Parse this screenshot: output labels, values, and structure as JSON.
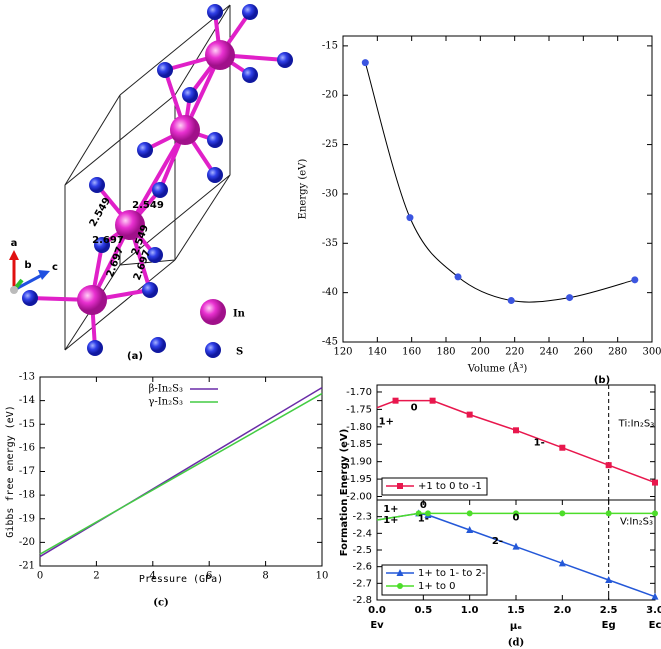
{
  "structure": {
    "label": "(a)",
    "bond_lengths": [
      "2.549",
      "2.549",
      "2.549",
      "2.697",
      "2.697",
      "2.697"
    ],
    "axes": [
      "a",
      "b",
      "c"
    ],
    "legend": [
      "In",
      "S"
    ]
  },
  "chart_data": [
    {
      "type": "scatter",
      "panel": "(b)",
      "fit": true,
      "xlabel": "Volume (Å³)",
      "ylabel": "Energy (eV)",
      "x": [
        133,
        159,
        187,
        218,
        252,
        290
      ],
      "values": [
        -16.7,
        -32.4,
        -38.4,
        -40.8,
        -40.5,
        -38.7
      ],
      "color": "#3b55e0",
      "xlim": [
        120,
        300
      ],
      "xticks": [
        120,
        140,
        160,
        180,
        200,
        220,
        240,
        260,
        280,
        300
      ],
      "ylim": [
        -45,
        -14
      ],
      "yticks": [
        -45,
        -40,
        -35,
        -30,
        -25,
        -20,
        -15
      ]
    },
    {
      "type": "line",
      "panel": "(c)",
      "xlabel": "Pressure (GPa)",
      "ylabel": "Gibbs free energy (eV)",
      "x": [
        0,
        2,
        4,
        6,
        8,
        10
      ],
      "series": [
        {
          "name": "β-In₂S₃",
          "color": "#6a2ca8",
          "values": [
            -20.6,
            -19.17,
            -17.74,
            -16.31,
            -14.88,
            -13.45
          ]
        },
        {
          "name": "γ-In₂S₃",
          "color": "#44cc44",
          "values": [
            -20.5,
            -19.14,
            -17.78,
            -16.42,
            -15.06,
            -13.7
          ]
        }
      ],
      "xlim": [
        0,
        10
      ],
      "xticks": [
        0,
        2,
        4,
        6,
        8,
        10
      ],
      "ylim": [
        -21,
        -13
      ],
      "yticks": [
        -21,
        -20,
        -19,
        -18,
        -17,
        -16,
        -15,
        -14,
        -13
      ],
      "legend": "top-left"
    },
    {
      "type": "line",
      "x": [
        0,
        0.2,
        0.6,
        1,
        1.5,
        2,
        2.5,
        3
      ],
      "series": [
        {
          "name": "+1 to 0 to -1",
          "color": "#e8174d",
          "marker": "square",
          "values": [
            -1.745,
            -1.725,
            -1.725,
            -1.765,
            -1.81,
            -1.86,
            -1.91,
            -1.96
          ]
        }
      ],
      "xlim": [
        0,
        3
      ],
      "ylim": [
        -2.01,
        -1.68
      ],
      "yticks": [
        {
          "value": -1.7,
          "label": "-1.70"
        },
        -1.75,
        {
          "value": -1.8,
          "label": "-1.80"
        },
        -1.85,
        {
          "value": -1.9,
          "label": "-1.90"
        },
        -1.95,
        {
          "value": -2,
          "label": "-2.00"
        }
      ],
      "vline": 2.5,
      "legend": "bottom-left",
      "annotations": [
        {
          "text": "1+",
          "x": 0.1,
          "y": -1.785
        },
        {
          "text": "0",
          "x": 0.4,
          "y": -1.745
        },
        {
          "text": "1-",
          "x": 1.75,
          "y": -1.845
        },
        {
          "text": "Ti:In₂S₃",
          "x": 2.8,
          "y": -1.79
        }
      ]
    },
    {
      "type": "line",
      "panel": "(d)",
      "ylabel": "Formation Energy (eV)",
      "xlabel": "μₑ",
      "x": [
        0,
        0.45,
        0.55,
        1,
        1.5,
        2,
        2.5,
        3
      ],
      "series": [
        {
          "name": "1+ to 1- to 2-",
          "color": "#2458d8",
          "marker": "triangle",
          "values": [
            -2.32,
            -2.28,
            -2.29,
            -2.38,
            -2.48,
            -2.58,
            -2.68,
            -2.78
          ]
        },
        {
          "name": "1+ to 0",
          "color": "#4ddd2a",
          "marker": "circle",
          "values": [
            -2.32,
            -2.28,
            -2.28,
            -2.28,
            -2.28,
            -2.28,
            -2.28,
            -2.28
          ]
        }
      ],
      "xlim": [
        0,
        3
      ],
      "xticks": [
        {
          "value": 0,
          "label": "0.0"
        },
        0.5,
        {
          "value": 1,
          "label": "1.0"
        },
        1.5,
        {
          "value": 2,
          "label": "2.0"
        },
        2.5,
        {
          "value": 3,
          "label": "3.0"
        }
      ],
      "edge_labels": [
        {
          "value": 0,
          "label": "Ev"
        },
        {
          "value": 2.5,
          "label": "Eg"
        },
        {
          "value": 3,
          "label": "Ec"
        }
      ],
      "ylim": [
        -2.8,
        -2.2
      ],
      "yticks": [
        -2.8,
        -2.7,
        -2.6,
        -2.5,
        -2.4,
        -2.3
      ],
      "vline": 2.5,
      "legend": "bottom-left",
      "annotations": [
        {
          "text": "1+",
          "x": 0.15,
          "y": -2.255
        },
        {
          "text": "0",
          "x": 0.5,
          "y": -2.23
        },
        {
          "text": "1+",
          "x": 0.15,
          "y": -2.32
        },
        {
          "text": "1-",
          "x": 0.5,
          "y": -2.31
        },
        {
          "text": "0",
          "x": 1.5,
          "y": -2.305
        },
        {
          "text": "2-",
          "x": 1.3,
          "y": -2.445
        },
        {
          "text": "V:In₂S₃",
          "x": 2.8,
          "y": -2.33
        }
      ]
    }
  ]
}
